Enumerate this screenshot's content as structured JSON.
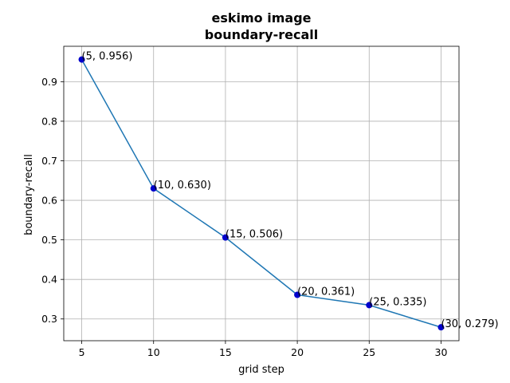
{
  "chart_data": {
    "type": "line",
    "title_line1": "eskimo image",
    "title_line2": "boundary-recall",
    "xlabel": "grid step",
    "ylabel": "boundary-recall",
    "x": [
      5,
      10,
      15,
      20,
      25,
      30
    ],
    "y": [
      0.956,
      0.63,
      0.506,
      0.361,
      0.335,
      0.279
    ],
    "point_labels": [
      "(5, 0.956)",
      "(10, 0.630)",
      "(15, 0.506)",
      "(20, 0.361)",
      "(25, 0.335)",
      "(30, 0.279)"
    ],
    "xticks": [
      5,
      10,
      15,
      20,
      25,
      30
    ],
    "yticks": [
      0.3,
      0.4,
      0.5,
      0.6,
      0.7,
      0.8,
      0.9
    ],
    "xtick_labels": [
      "5",
      "10",
      "15",
      "20",
      "25",
      "30"
    ],
    "ytick_labels": [
      "0.3",
      "0.4",
      "0.5",
      "0.6",
      "0.7",
      "0.8",
      "0.9"
    ],
    "xlim": [
      3.75,
      31.25
    ],
    "ylim": [
      0.245,
      0.9895
    ],
    "grid": true,
    "colors": {
      "line": "#1f77b4",
      "marker": "#0000cc",
      "grid": "#b0b0b0",
      "axes": "#000000"
    }
  }
}
